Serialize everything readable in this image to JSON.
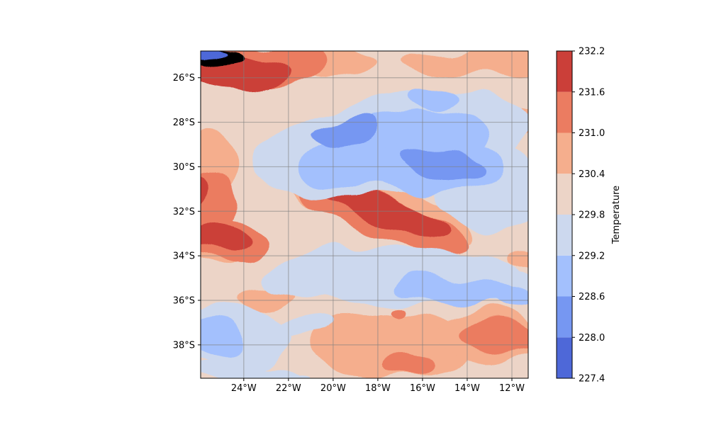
{
  "map": {
    "type": "filled-contour",
    "projection": "plate-carree",
    "lon_range": [
      -25.93,
      -11.27
    ],
    "lat_range": [
      -39.5,
      -24.8
    ],
    "gridlines": true,
    "lon_ticks": [
      {
        "value": -24,
        "label": "24°W"
      },
      {
        "value": -22,
        "label": "22°W"
      },
      {
        "value": -20,
        "label": "20°W"
      },
      {
        "value": -18,
        "label": "18°W"
      },
      {
        "value": -16,
        "label": "16°W"
      },
      {
        "value": -14,
        "label": "14°W"
      },
      {
        "value": -12,
        "label": "12°W"
      }
    ],
    "lat_ticks": [
      {
        "value": -26,
        "label": "26°S"
      },
      {
        "value": -28,
        "label": "28°S"
      },
      {
        "value": -30,
        "label": "30°S"
      },
      {
        "value": -32,
        "label": "32°S"
      },
      {
        "value": -34,
        "label": "34°S"
      },
      {
        "value": -36,
        "label": "36°S"
      },
      {
        "value": -38,
        "label": "38°S"
      }
    ],
    "base_level_index": 4,
    "features": [
      {
        "level": 5,
        "lon": -25.9,
        "lat": -30.0,
        "rx": 1.6,
        "ry": 1.4
      },
      {
        "level": 5,
        "lon": -25.3,
        "lat": -33.3,
        "rx": 1.3,
        "ry": 1.2
      },
      {
        "level": 5,
        "lon": -18.0,
        "lat": -31.8,
        "rx": 4.4,
        "ry": 1.25,
        "rot": 18
      },
      {
        "level": 5,
        "lon": -22.5,
        "lat": -25.3,
        "rx": 4.5,
        "ry": 0.7
      },
      {
        "level": 5,
        "lon": -13.5,
        "lat": -25.3,
        "rx": 3.5,
        "ry": 0.55
      },
      {
        "level": 5,
        "lon": -12.2,
        "lat": -28.0,
        "rx": 1.8,
        "ry": 0.75
      },
      {
        "level": 5,
        "lon": -17.3,
        "lat": -38.0,
        "rx": 3.6,
        "ry": 1.4
      },
      {
        "level": 5,
        "lon": -13.0,
        "lat": -37.6,
        "rx": 2.6,
        "ry": 1.1
      },
      {
        "level": 5,
        "lon": -23.0,
        "lat": -35.8,
        "rx": 1.3,
        "ry": 0.5
      },
      {
        "level": 5,
        "lon": -11.6,
        "lat": -34.2,
        "rx": 0.6,
        "ry": 0.35
      },
      {
        "level": 6,
        "lon": -25.4,
        "lat": -31.6,
        "rx": 1.3,
        "ry": 1.2
      },
      {
        "level": 6,
        "lon": -24.8,
        "lat": -33.3,
        "rx": 1.8,
        "ry": 1.0
      },
      {
        "level": 6,
        "lon": -17.8,
        "lat": -32.3,
        "rx": 3.9,
        "ry": 0.9,
        "rot": 18
      },
      {
        "level": 6,
        "lon": -23.5,
        "lat": -25.5,
        "rx": 3.0,
        "ry": 0.95
      },
      {
        "level": 6,
        "lon": -12.5,
        "lat": -37.6,
        "rx": 2.0,
        "ry": 0.7
      },
      {
        "level": 6,
        "lon": -16.7,
        "lat": -38.9,
        "rx": 1.2,
        "ry": 0.45
      },
      {
        "level": 6,
        "lon": -17.1,
        "lat": -36.5,
        "rx": 0.35,
        "ry": 0.25
      },
      {
        "level": 7,
        "lon": -25.0,
        "lat": -33.2,
        "rx": 1.3,
        "ry": 0.65
      },
      {
        "level": 7,
        "lon": -17.5,
        "lat": -32.1,
        "rx": 2.9,
        "ry": 0.6,
        "rot": 18
      },
      {
        "level": 7,
        "lon": -24.0,
        "lat": -25.8,
        "rx": 2.2,
        "ry": 0.75
      },
      {
        "level": 7,
        "lon": -25.9,
        "lat": -31.2,
        "rx": 0.35,
        "ry": 0.6
      },
      {
        "level": 8,
        "lon": -25.0,
        "lat": -25.1,
        "rx": 1.0,
        "ry": 0.35
      },
      {
        "level": 3,
        "lon": -17.3,
        "lat": -29.0,
        "rx": 6.3,
        "ry": 2.2,
        "rot": -10
      },
      {
        "level": 3,
        "lon": -14.5,
        "lat": -27.8,
        "rx": 2.7,
        "ry": 1.2
      },
      {
        "level": 3,
        "lon": -13.0,
        "lat": -31.0,
        "rx": 2.2,
        "ry": 2.0
      },
      {
        "level": 3,
        "lon": -17.5,
        "lat": -34.9,
        "rx": 5.8,
        "ry": 1.3
      },
      {
        "level": 3,
        "lon": -12.5,
        "lat": -35.5,
        "rx": 2.0,
        "ry": 0.8
      },
      {
        "level": 3,
        "lon": -24.5,
        "lat": -37.6,
        "rx": 2.6,
        "ry": 1.5
      },
      {
        "level": 3,
        "lon": -21.5,
        "lat": -37.3,
        "rx": 1.6,
        "ry": 0.4
      },
      {
        "level": 3,
        "lon": -24.0,
        "lat": -39.3,
        "rx": 2.5,
        "ry": 0.4
      },
      {
        "level": 3,
        "lon": -21.7,
        "lat": -39.4,
        "rx": 0.6,
        "ry": 0.25
      },
      {
        "level": 2,
        "lon": -17.3,
        "lat": -29.2,
        "rx": 4.3,
        "ry": 1.55,
        "rot": -12
      },
      {
        "level": 2,
        "lon": -15.5,
        "lat": -30.0,
        "rx": 3.0,
        "ry": 1.3
      },
      {
        "level": 2,
        "lon": -15.6,
        "lat": -26.9,
        "rx": 1.3,
        "ry": 0.5
      },
      {
        "level": 2,
        "lon": -14.5,
        "lat": -35.6,
        "rx": 2.9,
        "ry": 0.6,
        "rot": 6
      },
      {
        "level": 2,
        "lon": -11.9,
        "lat": -36.0,
        "rx": 0.9,
        "ry": 0.45
      },
      {
        "level": 2,
        "lon": -25.1,
        "lat": -37.7,
        "rx": 1.3,
        "ry": 1.0
      },
      {
        "level": 1,
        "lon": -19.5,
        "lat": -28.3,
        "rx": 1.4,
        "ry": 0.55,
        "rot": -5
      },
      {
        "level": 1,
        "lon": -15.1,
        "lat": -29.8,
        "rx": 1.9,
        "ry": 0.75,
        "rot": 12
      },
      {
        "level": 0,
        "lon": -25.5,
        "lat": -24.95,
        "rx": 0.9,
        "ry": 0.22
      }
    ]
  },
  "colorbar": {
    "label": "Temperature",
    "levels": [
      227.4,
      228.0,
      228.6,
      229.2,
      229.8,
      230.4,
      231.0,
      231.6,
      232.2
    ],
    "tick_labels": [
      "227.4",
      "228.0",
      "228.6",
      "229.2",
      "229.8",
      "230.4",
      "231.0",
      "231.6",
      "232.2"
    ],
    "colors": [
      "#4e68d8",
      "#7697f2",
      "#a3c0fd",
      "#ccd8ee",
      "#ecd4c7",
      "#f5ae8d",
      "#eb7c61",
      "#cb3f39"
    ]
  }
}
